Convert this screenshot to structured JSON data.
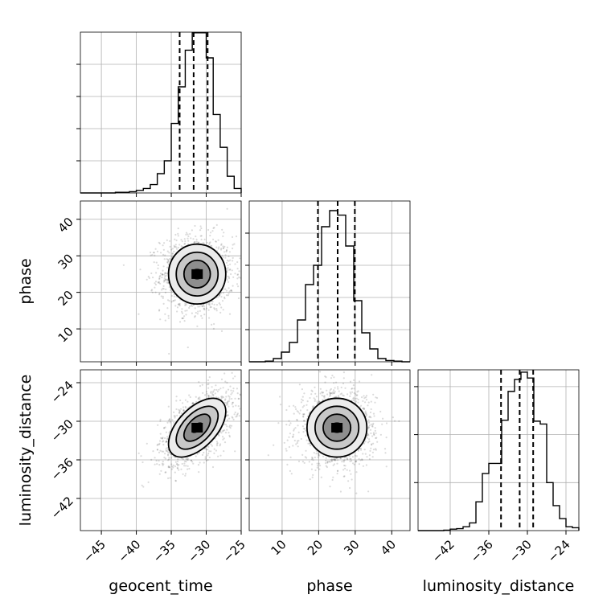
{
  "chart_data": {
    "type": "corner",
    "parameters": [
      "geocent_time",
      "phase",
      "luminosity_distance"
    ],
    "xlabels": [
      "geocent_time",
      "phase",
      "luminosity_distance"
    ],
    "ylabels": [
      "",
      "phase",
      "luminosity_distance"
    ],
    "ranges": {
      "geocent_time": [
        -48,
        -25
      ],
      "phase": [
        1,
        45
      ],
      "luminosity_distance": [
        -47,
        -22
      ]
    },
    "ticks": {
      "geocent_time": {
        "values": [
          -45,
          -40,
          -35,
          -30,
          -25
        ],
        "labels": [
          "−45",
          "−40",
          "−35",
          "−30",
          "−25"
        ]
      },
      "phase": {
        "values": [
          10,
          20,
          30,
          40
        ],
        "labels": [
          "10",
          "20",
          "30",
          "40"
        ]
      },
      "luminosity_distance": {
        "values": [
          -42,
          -36,
          -30,
          -24
        ],
        "labels": [
          "−42",
          "−36",
          "−30",
          "−24"
        ]
      }
    },
    "grid": true,
    "histograms": [
      {
        "parameter": "geocent_time",
        "bin_edges": [
          -48,
          -47,
          -46,
          -45,
          -44,
          -43,
          -42,
          -41,
          -40,
          -39,
          -38,
          -37,
          -36,
          -35,
          -34,
          -33,
          -32,
          -31,
          -30,
          -29,
          -28,
          -27,
          -26,
          -25
        ],
        "counts": [
          0,
          0,
          0,
          0,
          0,
          1,
          1,
          2,
          4,
          7,
          13,
          30,
          50,
          108,
          165,
          222,
          249,
          249,
          210,
          122,
          71,
          26,
          7
        ],
        "quantiles": [
          -33.8,
          -31.8,
          -29.8
        ],
        "ymax": 250
      },
      {
        "parameter": "phase",
        "bin_edges": [
          1,
          3.2,
          5.4,
          7.6,
          9.8,
          12,
          14.2,
          16.4,
          18.6,
          20.8,
          23,
          25.2,
          27.4,
          29.6,
          31.8,
          34,
          36.2,
          38.4,
          40.6,
          42.8,
          45
        ],
        "counts": [
          0,
          0,
          1,
          5,
          15,
          30,
          65,
          120,
          150,
          210,
          235,
          228,
          180,
          95,
          45,
          20,
          5,
          2,
          1,
          0
        ],
        "quantiles": [
          19.8,
          25.2,
          29.9
        ],
        "ymax": 250
      },
      {
        "parameter": "luminosity_distance",
        "bin_edges": [
          -47,
          -46,
          -45,
          -44,
          -43,
          -42,
          -41,
          -40,
          -39,
          -38,
          -37,
          -36,
          -35,
          -34,
          -33,
          -32,
          -31,
          -30,
          -29,
          -28,
          -27,
          -26,
          -25,
          -24,
          -23,
          -22
        ],
        "counts": [
          0,
          0,
          0,
          0,
          1,
          3,
          4,
          8,
          16,
          60,
          119,
          140,
          140,
          230,
          290,
          315,
          330,
          318,
          228,
          222,
          100,
          52,
          25,
          8,
          6
        ],
        "quantiles": [
          -34.1,
          -31.2,
          -29.1
        ],
        "ymax": 335
      }
    ],
    "joint": [
      {
        "x": "geocent_time",
        "y": "phase",
        "center": [
          -31.3,
          25.0
        ],
        "sigma": [
          2.6,
          5.2
        ],
        "rho": 0.0
      },
      {
        "x": "geocent_time",
        "y": "luminosity_distance",
        "center": [
          -31.3,
          -31.0
        ],
        "sigma": [
          2.6,
          2.9
        ],
        "rho": 0.55
      },
      {
        "x": "phase",
        "y": "luminosity_distance",
        "center": [
          25.0,
          -31.0
        ],
        "sigma": [
          5.2,
          2.9
        ],
        "rho": 0.0
      }
    ],
    "contour_levels": [
      0.5,
      1.0,
      1.5,
      2.0
    ]
  }
}
